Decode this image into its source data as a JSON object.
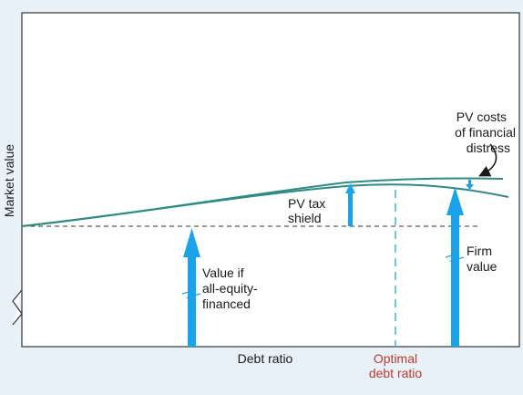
{
  "axes": {
    "y_label": "Market value",
    "x_label": "Debt ratio",
    "optimal_label": [
      "Optimal",
      "debt ratio"
    ]
  },
  "labels": {
    "pv_tax_shield": [
      "PV tax",
      "shield"
    ],
    "pv_costs": [
      "PV costs",
      "of financial",
      "distress"
    ],
    "firm_value": [
      "Firm",
      "value"
    ],
    "all_equity": [
      "Value if",
      "all-equity-",
      "financed"
    ]
  },
  "colors": {
    "curve": "#2e8b84",
    "arrow": "#1aa3e8",
    "optimal_line": "#2bb3d9",
    "optimal_text": "#c0392b",
    "background": "#e8f1f8",
    "plot_bg": "#ffffff"
  }
}
